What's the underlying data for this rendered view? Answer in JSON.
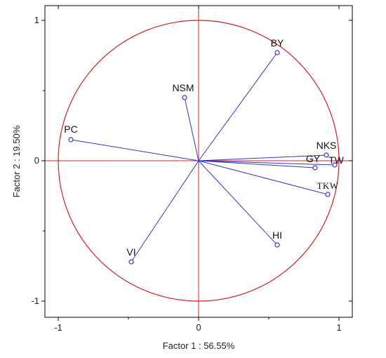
{
  "chart_data": {
    "type": "scatter",
    "subtype": "pca-correlation-circle",
    "title": "",
    "xlabel": "Factor 1 : 56.55%",
    "ylabel": "Factor 2 : 19.50%",
    "xlim": [
      -1.1,
      1.1
    ],
    "ylim": [
      -1.05,
      1.05
    ],
    "xticks": [
      -1,
      0,
      1
    ],
    "yticks": [
      1,
      0,
      -1
    ],
    "xtick_labels": [
      "-1",
      "0",
      "1"
    ],
    "ytick_labels": [
      "1",
      "0",
      "-1"
    ],
    "grid": false,
    "unit_circle": true,
    "points": [
      {
        "label": "BY",
        "x": 0.56,
        "y": 0.77
      },
      {
        "label": "NSM",
        "x": -0.1,
        "y": 0.45
      },
      {
        "label": "PC",
        "x": -0.91,
        "y": 0.15
      },
      {
        "label": "NKS",
        "x": 0.91,
        "y": 0.04
      },
      {
        "label": "TW",
        "x": 0.97,
        "y": -0.03
      },
      {
        "label": "GY",
        "x": 0.83,
        "y": -0.05
      },
      {
        "label": "TKW",
        "x": 0.92,
        "y": -0.24
      },
      {
        "label": "HI",
        "x": 0.56,
        "y": -0.6
      },
      {
        "label": "VI",
        "x": -0.48,
        "y": -0.72
      }
    ],
    "colors": {
      "vector": "#3333cc",
      "circle": "#cc2222",
      "axis_lines": "#cc2222",
      "frame": "#000000"
    }
  }
}
